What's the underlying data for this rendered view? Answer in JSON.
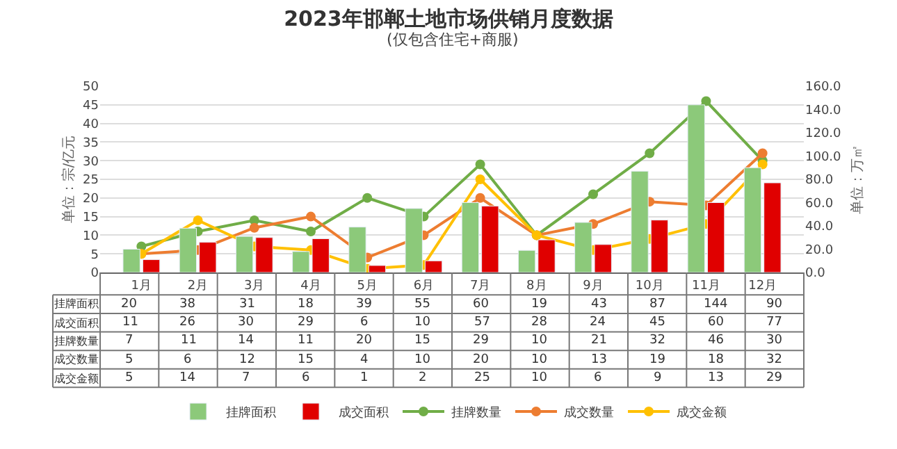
{
  "chart_data": {
    "type": "bar",
    "title": "2023年邯郸土地市场供销月度数据",
    "subtitle": "(仅包含住宅+商服)",
    "ylabel": "单位：宗/亿元",
    "y2label": "单位：万㎡",
    "categories": [
      "1月",
      "2月",
      "3月",
      "4月",
      "5月",
      "6月",
      "7月",
      "8月",
      "9月",
      "10月",
      "11月",
      "12月"
    ],
    "series": [
      {
        "name": "挂牌面积",
        "axis": "y2",
        "color": "#8cc97a",
        "values": [
          20,
          38,
          31,
          18,
          39,
          55,
          60,
          19,
          43,
          87,
          144,
          90
        ]
      },
      {
        "name": "成交面积",
        "type": "bar",
        "axis": "y2",
        "color": "#e00000",
        "values": [
          11,
          26,
          30,
          29,
          6,
          10,
          57,
          28,
          24,
          45,
          60,
          77
        ]
      },
      {
        "name": "挂牌数量",
        "type": "line",
        "color": "#70ad47",
        "values": [
          7,
          11,
          14,
          11,
          20,
          15,
          29,
          10,
          21,
          32,
          46,
          30
        ]
      },
      {
        "name": "成交数量",
        "type": "line",
        "color": "#ed7d31",
        "values": [
          5,
          6,
          12,
          15,
          4,
          10,
          20,
          10,
          13,
          19,
          18,
          32
        ]
      },
      {
        "name": "成交金额",
        "type": "line",
        "color": "#ffc000",
        "values": [
          5,
          14,
          7,
          6,
          1,
          2,
          25,
          10,
          6,
          9,
          13,
          29
        ]
      }
    ],
    "ylim": [
      0,
      50
    ],
    "yticks": [
      0,
      5,
      10,
      15,
      20,
      25,
      30,
      35,
      40,
      45,
      50
    ],
    "y2lim": [
      0,
      160
    ],
    "y2ticks": [
      {
        "value": 0,
        "label": "0.0"
      },
      {
        "value": 20,
        "label": "20.0"
      },
      {
        "value": 40,
        "label": "40.0"
      },
      {
        "value": 60,
        "label": "60.0"
      },
      {
        "value": 80,
        "label": "80.0"
      },
      {
        "value": 100,
        "label": "100.0"
      },
      {
        "value": 120,
        "label": "120.0"
      },
      {
        "value": 140,
        "label": "140.0"
      },
      {
        "value": 160,
        "label": "160.0"
      }
    ],
    "grid": "y",
    "legend": "bottom",
    "marker": "circle",
    "line_style": "solid",
    "data_labels": true
  }
}
